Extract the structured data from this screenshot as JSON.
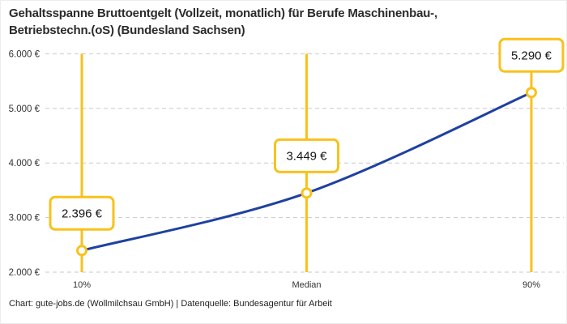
{
  "title": {
    "lines": [
      "Gehaltsspanne Bruttoentgelt (Vollzeit, monatlich) für Berufe Maschinenbau-,",
      "Betriebstechn.(oS) (Bundesland Sachsen)"
    ]
  },
  "footer": {
    "credit": "Chart: gute-jobs.de (Wollmilchsau GmbH) | Datenquelle: Bundesagentur für Arbeit"
  },
  "chart_data": {
    "type": "line",
    "title": "Gehaltsspanne Bruttoentgelt (Vollzeit, monatlich) für Berufe Maschinenbau-, Betriebstechn.(oS) (Bundesland Sachsen)",
    "categories": [
      "10%",
      "Median",
      "90%"
    ],
    "values": [
      2396,
      3449,
      5290
    ],
    "point_labels": [
      "2.396 €",
      "3.449 €",
      "5.290 €"
    ],
    "xlabel": "",
    "ylabel": "",
    "ylim": [
      2000,
      6000
    ],
    "ytick_values": [
      2000,
      3000,
      4000,
      5000,
      6000
    ],
    "ytick_labels": [
      "2.000 €",
      "3.000 €",
      "4.000 €",
      "5.000 €",
      "6.000 €"
    ],
    "grid": true,
    "legend": false,
    "colors": {
      "line": "#1F419F",
      "accent": "#F8C21C",
      "grid": "#C9C9C9",
      "axis_text": "#333333",
      "label_text": "#141414",
      "background": "#FFFFFF"
    }
  }
}
